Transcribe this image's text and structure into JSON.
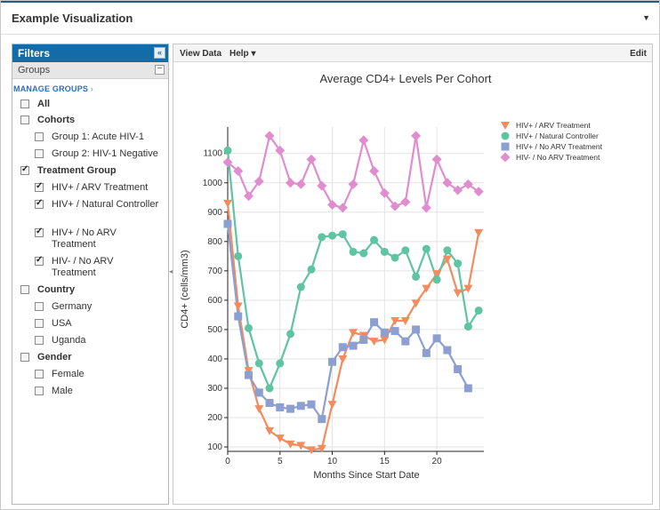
{
  "window": {
    "title": "Example Visualization"
  },
  "filters": {
    "header": "Filters",
    "collapse_symbol": "«",
    "groups_label": "Groups",
    "manage_groups": "MANAGE GROUPS",
    "items": [
      {
        "label": "All",
        "checked": false,
        "bold": true,
        "level": 0
      },
      {
        "label": "Cohorts",
        "checked": false,
        "bold": true,
        "level": 0
      },
      {
        "label": "Group 1: Acute HIV-1",
        "checked": false,
        "bold": false,
        "level": 1
      },
      {
        "label": "Group 2: HIV-1 Negative",
        "checked": false,
        "bold": false,
        "level": 1
      },
      {
        "label": "Treatment Group",
        "checked": true,
        "bold": true,
        "level": 0
      },
      {
        "label": "HIV+ / ARV Treatment",
        "checked": true,
        "bold": false,
        "level": 1
      },
      {
        "label": "HIV+ / Natural Controller",
        "checked": true,
        "bold": false,
        "level": 1
      },
      {
        "label": "HIV+ / No ARV Treatment",
        "checked": true,
        "bold": false,
        "level": 1
      },
      {
        "label": "HIV- / No ARV Treatment",
        "checked": true,
        "bold": false,
        "level": 1
      },
      {
        "label": "Country",
        "checked": false,
        "bold": true,
        "level": 0
      },
      {
        "label": "Germany",
        "checked": false,
        "bold": false,
        "level": 1
      },
      {
        "label": "USA",
        "checked": false,
        "bold": false,
        "level": 1
      },
      {
        "label": "Uganda",
        "checked": false,
        "bold": false,
        "level": 1
      },
      {
        "label": "Gender",
        "checked": false,
        "bold": true,
        "level": 0
      },
      {
        "label": "Female",
        "checked": false,
        "bold": false,
        "level": 1
      },
      {
        "label": "Male",
        "checked": false,
        "bold": false,
        "level": 1
      }
    ]
  },
  "toolbar": {
    "view_data": "View Data",
    "help": "Help ▾",
    "edit": "Edit"
  },
  "chart_data": {
    "type": "line",
    "title": "Average CD4+ Levels Per Cohort",
    "xlabel": "Months Since Start Date",
    "ylabel": "CD4+ (cells/mm3)",
    "xlim": [
      0,
      24.5
    ],
    "ylim": [
      85,
      1190
    ],
    "xticks": [
      0,
      5,
      10,
      15,
      20
    ],
    "yticks": [
      100,
      200,
      300,
      400,
      500,
      600,
      700,
      800,
      900,
      1000,
      1100
    ],
    "grid": true,
    "legend_position": "top-right",
    "series": [
      {
        "name": "HIV+ / ARV Treatment",
        "color": "#f48b5e",
        "marker": "triangle-down",
        "x": [
          0,
          1,
          2,
          3,
          4,
          5,
          6,
          7,
          8,
          9,
          10,
          11,
          12,
          13,
          14,
          15,
          16,
          17,
          18,
          19,
          20,
          21,
          22,
          23,
          24
        ],
        "y": [
          930,
          580,
          360,
          230,
          155,
          130,
          110,
          105,
          90,
          95,
          245,
          400,
          490,
          480,
          460,
          465,
          530,
          530,
          590,
          640,
          690,
          740,
          625,
          640,
          830
        ]
      },
      {
        "name": "HIV+ / Natural Controller",
        "color": "#5fc4a1",
        "marker": "circle",
        "x": [
          0,
          1,
          2,
          3,
          4,
          5,
          6,
          7,
          8,
          9,
          10,
          11,
          12,
          13,
          14,
          15,
          16,
          17,
          18,
          19,
          20,
          21,
          22,
          23,
          24
        ],
        "y": [
          1110,
          750,
          505,
          385,
          300,
          385,
          485,
          645,
          705,
          815,
          820,
          825,
          765,
          760,
          805,
          765,
          745,
          770,
          680,
          775,
          670,
          770,
          725,
          510,
          565
        ]
      },
      {
        "name": "HIV+ / No ARV Treatment",
        "color": "#8c9fd0",
        "marker": "square",
        "x": [
          0,
          1,
          2,
          3,
          4,
          5,
          6,
          7,
          8,
          9,
          10,
          11,
          12,
          13,
          14,
          15,
          16,
          17,
          18,
          19,
          20,
          21,
          22,
          23
        ],
        "y": [
          860,
          545,
          345,
          285,
          250,
          235,
          230,
          240,
          245,
          195,
          390,
          440,
          445,
          465,
          525,
          490,
          495,
          460,
          500,
          420,
          470,
          430,
          365,
          300
        ]
      },
      {
        "name": "HIV- / No ARV Treatment",
        "color": "#e08dcf",
        "marker": "diamond",
        "x": [
          0,
          1,
          2,
          3,
          4,
          5,
          6,
          7,
          8,
          9,
          10,
          11,
          12,
          13,
          14,
          15,
          16,
          17,
          18,
          19,
          20,
          21,
          22,
          23,
          24
        ],
        "y": [
          1070,
          1040,
          955,
          1005,
          1160,
          1110,
          1000,
          995,
          1080,
          990,
          925,
          915,
          995,
          1145,
          1040,
          965,
          920,
          935,
          1160,
          915,
          1080,
          1000,
          975,
          995,
          970
        ]
      }
    ]
  }
}
